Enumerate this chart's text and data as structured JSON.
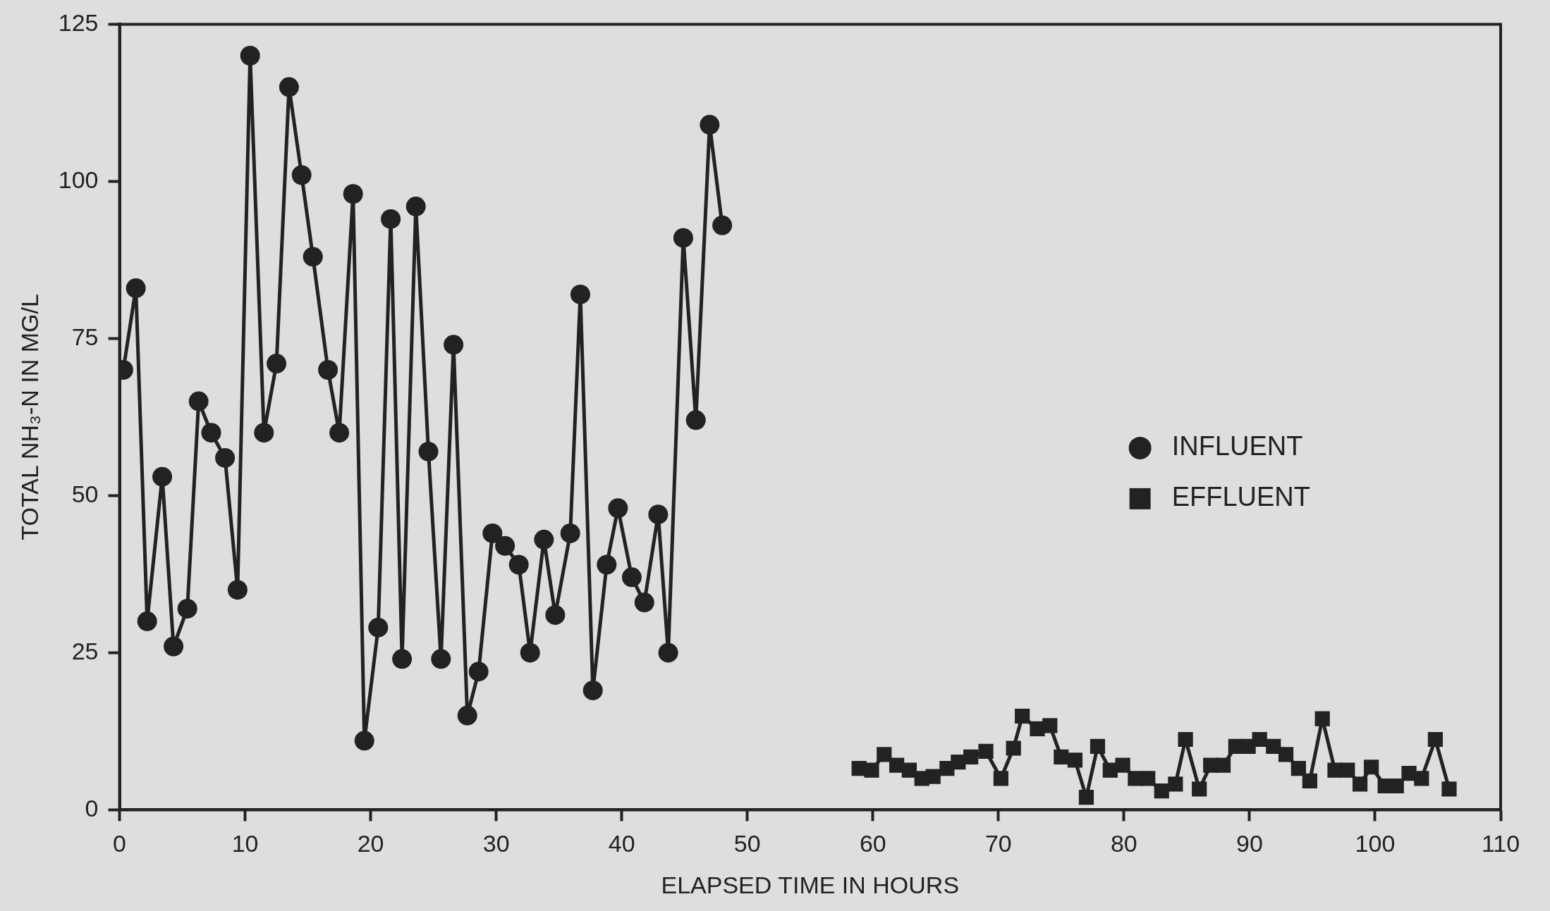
{
  "chart_data": {
    "type": "line",
    "xlabel": "ELAPSED TIME IN HOURS",
    "ylabel": "TOTAL NH₃-N IN MG/L",
    "xlim": [
      0,
      110
    ],
    "xticks": [
      0,
      10,
      20,
      30,
      40,
      50,
      60,
      70,
      80,
      90,
      100,
      110
    ],
    "ylim": [
      0,
      125
    ],
    "yticks": [
      0,
      25,
      50,
      75,
      100,
      125
    ],
    "grid": false,
    "legend": "right",
    "line_style": "solid",
    "series": [
      {
        "name": "INFLUENT",
        "color": "#222222",
        "marker": "circle",
        "x": [
          0.3,
          1.3,
          2.2,
          3.4,
          4.3,
          5.4,
          6.3,
          7.3,
          8.4,
          9.4,
          10.4,
          11.5,
          12.5,
          13.5,
          14.5,
          15.4,
          16.6,
          17.5,
          18.6,
          19.5,
          20.6,
          21.6,
          22.5,
          23.6,
          24.6,
          25.6,
          26.6,
          27.7,
          28.6,
          29.7,
          30.7,
          31.8,
          32.7,
          33.8,
          34.7,
          35.9,
          36.7,
          37.7,
          38.8,
          39.7,
          40.8,
          41.8,
          42.9,
          43.7,
          44.9,
          45.9,
          47.0,
          48.0
        ],
        "values": [
          70,
          83,
          30,
          53,
          26,
          32,
          65,
          60,
          56,
          35,
          120,
          60,
          71,
          115,
          101,
          88,
          70,
          60,
          98,
          11,
          29,
          94,
          24,
          96,
          57,
          24,
          74,
          15,
          22,
          44,
          42,
          39,
          25,
          43,
          31,
          44,
          82,
          19,
          39,
          48,
          37,
          33,
          47,
          25,
          91,
          62,
          109,
          93
        ]
      },
      {
        "name": "EFFLUENT",
        "color": "#222222",
        "marker": "square",
        "x": [
          58.9,
          59.9,
          60.9,
          61.9,
          62.9,
          63.9,
          64.8,
          65.9,
          66.8,
          67.8,
          69.0,
          70.2,
          71.2,
          71.9,
          73.1,
          74.1,
          75.0,
          76.1,
          77.0,
          77.9,
          78.9,
          79.9,
          80.9,
          81.9,
          83.0,
          84.1,
          84.9,
          86.0,
          86.9,
          87.9,
          88.9,
          89.9,
          90.8,
          91.9,
          92.9,
          93.9,
          94.8,
          95.8,
          96.8,
          97.8,
          98.8,
          99.7,
          100.8,
          101.7,
          102.7,
          103.7,
          104.8,
          105.9
        ],
        "values": [
          6.6,
          6.3,
          8.8,
          7.1,
          6.3,
          5.0,
          5.3,
          6.6,
          7.6,
          8.4,
          9.3,
          5.0,
          9.8,
          14.9,
          12.9,
          13.4,
          8.4,
          7.9,
          2.0,
          10.1,
          6.3,
          7.1,
          5.0,
          5.0,
          3.0,
          4.1,
          11.2,
          3.3,
          7.1,
          7.1,
          10.1,
          10.1,
          11.2,
          10.1,
          8.8,
          6.6,
          4.6,
          14.5,
          6.3,
          6.3,
          4.1,
          6.8,
          3.8,
          3.8,
          5.8,
          5.0,
          11.2,
          3.3
        ]
      }
    ]
  }
}
